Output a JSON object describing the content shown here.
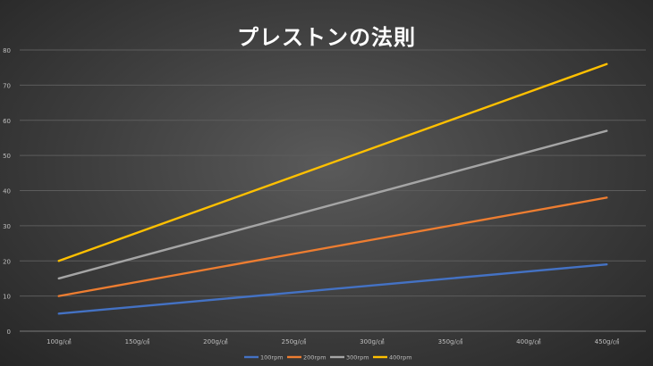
{
  "chart_data": {
    "type": "line",
    "title": "プレストンの法則",
    "xlabel": "",
    "ylabel": "",
    "categories": [
      "100g/㎠",
      "150g/㎠",
      "200g/㎠",
      "250g/㎠",
      "300g/㎠",
      "350g/㎠",
      "400g/㎠",
      "450g/㎠"
    ],
    "ylim": [
      0,
      80
    ],
    "yticks": [
      0,
      10,
      20,
      30,
      40,
      50,
      60,
      70,
      80
    ],
    "grid": true,
    "legend": "bottom",
    "series": [
      {
        "name": "100rpm",
        "color": "#4472C4",
        "values": [
          5,
          7,
          9,
          11,
          13,
          15,
          17,
          19
        ]
      },
      {
        "name": "200rpm",
        "color": "#ED7D31",
        "values": [
          10,
          14,
          18,
          22,
          26,
          30,
          34,
          38
        ]
      },
      {
        "name": "300rpm",
        "color": "#A5A5A5",
        "values": [
          15,
          21,
          27,
          33,
          39,
          45,
          51,
          57
        ]
      },
      {
        "name": "400rpm",
        "color": "#FFC000",
        "values": [
          20,
          28,
          36,
          44,
          52,
          60,
          68,
          76
        ]
      }
    ]
  }
}
